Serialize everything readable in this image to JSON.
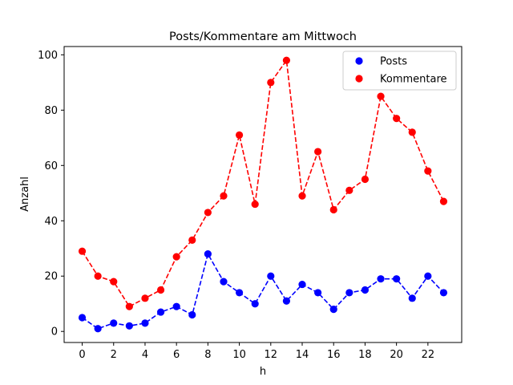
{
  "chart_data": {
    "type": "line",
    "title": "Posts/Kommentare am Mittwoch",
    "xlabel": "h",
    "ylabel": "Anzahl",
    "x": [
      0,
      1,
      2,
      3,
      4,
      5,
      6,
      7,
      8,
      9,
      10,
      11,
      12,
      13,
      14,
      15,
      16,
      17,
      18,
      19,
      20,
      21,
      22,
      23
    ],
    "xlim": [
      -1.15,
      24.15
    ],
    "ylim": [
      -4,
      103
    ],
    "xticks": [
      0,
      2,
      4,
      6,
      8,
      10,
      12,
      14,
      16,
      18,
      20,
      22
    ],
    "yticks": [
      0,
      20,
      40,
      60,
      80,
      100
    ],
    "grid": false,
    "legend_position": "upper-right",
    "series": [
      {
        "name": "Posts",
        "color": "#0000ff",
        "values": [
          5,
          1,
          3,
          2,
          3,
          7,
          9,
          6,
          28,
          18,
          14,
          10,
          20,
          11,
          17,
          14,
          8,
          14,
          15,
          19,
          19,
          12,
          20,
          14
        ]
      },
      {
        "name": "Kommentare",
        "color": "#ff0000",
        "values": [
          29,
          20,
          18,
          9,
          12,
          15,
          27,
          33,
          43,
          49,
          71,
          46,
          90,
          98,
          49,
          65,
          44,
          51,
          55,
          85,
          77,
          72,
          58,
          47
        ]
      }
    ]
  }
}
